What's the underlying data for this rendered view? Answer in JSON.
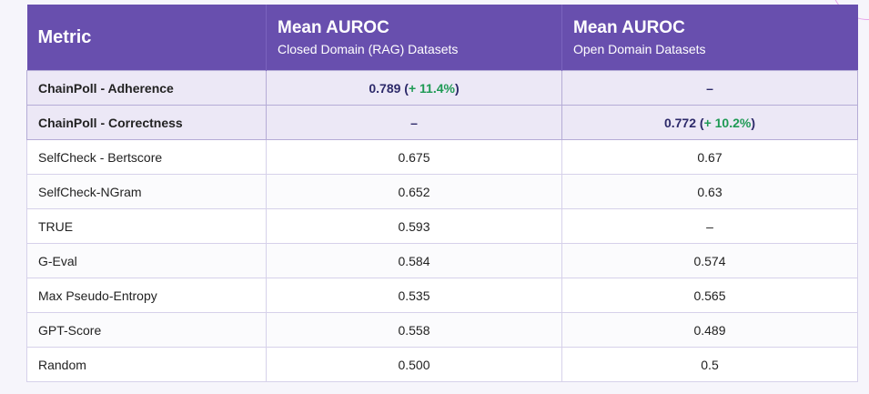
{
  "header": {
    "metric": "Metric",
    "col2_title": "Mean AUROC",
    "col2_subtitle": "Closed Domain (RAG) Datasets",
    "col3_title": "Mean AUROC",
    "col3_subtitle": "Open Domain Datasets"
  },
  "highlight_rows": [
    {
      "metric": "ChainPoll - Adherence",
      "closed_value": "0.789",
      "closed_paren_open": " (",
      "closed_pct": "+ 11.4%",
      "closed_paren_close": ")",
      "open_value": "–"
    },
    {
      "metric": "ChainPoll - Correctness",
      "closed_value": "–",
      "open_value": "0.772",
      "open_paren_open": " (",
      "open_pct": "+ 10.2%",
      "open_paren_close": ")"
    }
  ],
  "rows": [
    {
      "metric": "SelfCheck - Bertscore",
      "closed": "0.675",
      "open": "0.67"
    },
    {
      "metric": "SelfCheck-NGram",
      "closed": "0.652",
      "open": "0.63"
    },
    {
      "metric": "TRUE",
      "closed": "0.593",
      "open": "–"
    },
    {
      "metric": "G-Eval",
      "closed": "0.584",
      "open": "0.574"
    },
    {
      "metric": "Max Pseudo-Entropy",
      "closed": "0.535",
      "open": "0.565"
    },
    {
      "metric": "GPT-Score",
      "closed": "0.558",
      "open": "0.489"
    },
    {
      "metric": "Random",
      "closed": "0.500",
      "open": "0.5"
    }
  ],
  "colors": {
    "header_bg": "#684fae",
    "highlight_bg": "#ece8f6",
    "gain_green": "#1f9a55",
    "value_navy": "#2d2a6a"
  }
}
